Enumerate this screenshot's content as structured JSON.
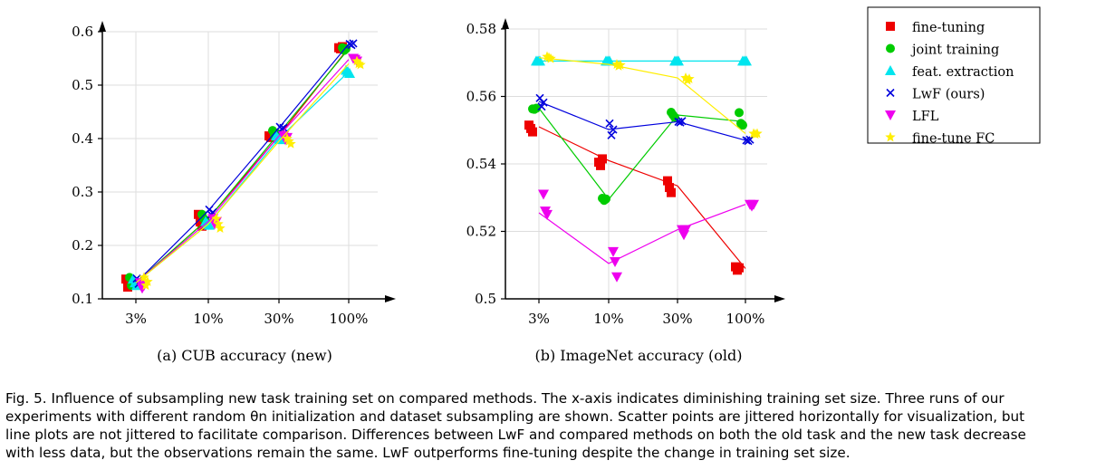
{
  "colors": {
    "fine-tuning": "#ee0000",
    "joint training": "#00cc00",
    "feat. extraction": "#00e5ee",
    "LwF (ours)": "#0000dd",
    "LFL": "#ee00ee",
    "fine-tune FC": "#ffee00"
  },
  "chart_data": [
    {
      "type": "line",
      "title": "",
      "subcaption": "(a)  CUB accuracy (new)",
      "xlabel": "",
      "ylabel": "",
      "categories": [
        "3%",
        "10%",
        "30%",
        "100%"
      ],
      "ylim": [
        0.1,
        0.6
      ],
      "yticks": [
        0.1,
        0.2,
        0.3,
        0.4,
        0.5,
        0.6
      ],
      "ytick_labels": [
        "0.1",
        "0.2",
        "0.3",
        "0.4",
        "0.5",
        "0.6"
      ],
      "grid": true,
      "series": [
        {
          "name": "fine-tuning",
          "marker": "square",
          "values": [
            0.13,
            0.25,
            0.405,
            0.57
          ],
          "runs": [
            [
              0.137,
              0.122,
              0.128
            ],
            [
              0.258,
              0.244,
              0.236
            ],
            [
              0.405,
              0.402,
              0.408
            ],
            [
              0.57,
              0.568,
              0.572
            ]
          ]
        },
        {
          "name": "joint training",
          "marker": "circle",
          "values": [
            0.13,
            0.25,
            0.41,
            0.568
          ],
          "runs": [
            [
              0.14,
              0.125,
              0.132
            ],
            [
              0.258,
              0.25,
              0.245
            ],
            [
              0.415,
              0.405,
              0.41
            ],
            [
              0.57,
              0.565,
              0.568
            ]
          ]
        },
        {
          "name": "feat. extraction",
          "marker": "triangle-up",
          "values": [
            0.13,
            0.24,
            0.4,
            0.525
          ],
          "runs": [
            [
              0.137,
              0.13,
              0.125
            ],
            [
              0.245,
              0.24,
              0.238
            ],
            [
              0.405,
              0.4,
              0.398
            ],
            [
              0.528,
              0.525,
              0.522
            ]
          ]
        },
        {
          "name": "LwF (ours)",
          "marker": "x",
          "values": [
            0.13,
            0.265,
            0.42,
            0.577
          ],
          "runs": [
            [
              0.138,
              0.128,
              0.133
            ],
            [
              0.267,
              0.258,
              0.262
            ],
            [
              0.422,
              0.418,
              0.42
            ],
            [
              0.577,
              0.575,
              0.578
            ]
          ]
        },
        {
          "name": "LFL",
          "marker": "triangle-down",
          "values": [
            0.13,
            0.245,
            0.405,
            0.548
          ],
          "runs": [
            [
              0.13,
              0.12,
              0.125
            ],
            [
              0.25,
              0.24,
              0.245
            ],
            [
              0.405,
              0.398,
              0.402
            ],
            [
              0.55,
              0.548,
              0.545
            ]
          ]
        },
        {
          "name": "fine-tune FC",
          "marker": "star",
          "values": [
            0.13,
            0.24,
            0.395,
            0.54
          ],
          "runs": [
            [
              0.14,
              0.125,
              0.132
            ],
            [
              0.25,
              0.24,
              0.232
            ],
            [
              0.4,
              0.395,
              0.39
            ],
            [
              0.545,
              0.54,
              0.538
            ]
          ]
        }
      ]
    },
    {
      "type": "line",
      "title": "",
      "subcaption": "(b)  ImageNet accuracy (old)",
      "xlabel": "",
      "ylabel": "",
      "categories": [
        "3%",
        "10%",
        "30%",
        "100%"
      ],
      "ylim": [
        0.5,
        0.58
      ],
      "yticks": [
        0.5,
        0.52,
        0.54,
        0.56,
        0.58
      ],
      "ytick_labels": [
        "0.5",
        "0.52",
        "0.54",
        "0.56",
        "0.58"
      ],
      "grid": true,
      "series": [
        {
          "name": "fine-tuning",
          "marker": "square",
          "values": [
            0.551,
            0.541,
            0.5335,
            0.509
          ],
          "runs": [
            [
              0.5515,
              0.5505,
              0.5495
            ],
            [
              0.5405,
              0.5395,
              0.5415
            ],
            [
              0.535,
              0.533,
              0.5315
            ],
            [
              0.5095,
              0.5085,
              0.5092
            ]
          ]
        },
        {
          "name": "joint training",
          "marker": "circle",
          "values": [
            0.5565,
            0.5295,
            0.5545,
            0.5525
          ],
          "runs": [
            [
              0.5563,
              0.5562,
              0.5565
            ],
            [
              0.5298,
              0.5292,
              0.5296
            ],
            [
              0.5553,
              0.5545,
              0.5538
            ],
            [
              0.5552,
              0.552,
              0.5515
            ]
          ]
        },
        {
          "name": "feat. extraction",
          "marker": "triangle-up",
          "values": [
            0.5705,
            0.5705,
            0.5705,
            0.5705
          ],
          "runs": [
            [
              0.5705,
              0.5705,
              0.5705
            ],
            [
              0.5705,
              0.5705,
              0.5705
            ],
            [
              0.5705,
              0.5705,
              0.5705
            ],
            [
              0.5705,
              0.5705,
              0.5705
            ]
          ]
        },
        {
          "name": "LwF (ours)",
          "marker": "x",
          "values": [
            0.5585,
            0.5502,
            0.5525,
            0.547
          ],
          "runs": [
            [
              0.5595,
              0.557,
              0.5582
            ],
            [
              0.552,
              0.5485,
              0.5502
            ],
            [
              0.5525,
              0.5523,
              0.5527
            ],
            [
              0.547,
              0.5468,
              0.5472
            ]
          ]
        },
        {
          "name": "LFL",
          "marker": "triangle-down",
          "values": [
            0.5255,
            0.5105,
            0.5205,
            0.528
          ],
          "runs": [
            [
              0.531,
              0.526,
              0.525
            ],
            [
              0.514,
              0.511,
              0.5065
            ],
            [
              0.5205,
              0.519,
              0.5205
            ],
            [
              0.528,
              0.5275,
              0.528
            ]
          ]
        },
        {
          "name": "fine-tune FC",
          "marker": "star",
          "values": [
            0.5715,
            0.5695,
            0.5655,
            0.549
          ],
          "runs": [
            [
              0.5718,
              0.5715,
              0.5712
            ],
            [
              0.5695,
              0.569,
              0.5693
            ],
            [
              0.5655,
              0.5648,
              0.5652
            ],
            [
              0.549,
              0.5488,
              0.549
            ]
          ]
        }
      ]
    }
  ],
  "legend": {
    "entries": [
      "fine-tuning",
      "joint training",
      "feat. extraction",
      "LwF (ours)",
      "LFL",
      "fine-tune FC"
    ]
  },
  "caption": {
    "line1": "Fig. 5. Influence of subsampling new task training set on compared methods. The x-axis indicates diminishing training set size. Three runs of our",
    "line2": "experiments with different random θn initialization and dataset subsampling are shown. Scatter points are jittered horizontally for visualization, but",
    "line3": "line plots are not jittered to facilitate comparison. Differences between LwF and compared methods on both the old task and the new task decrease",
    "line4": "with less data, but the observations remain the same. LwF outperforms fine-tuning despite the change in training set size."
  }
}
